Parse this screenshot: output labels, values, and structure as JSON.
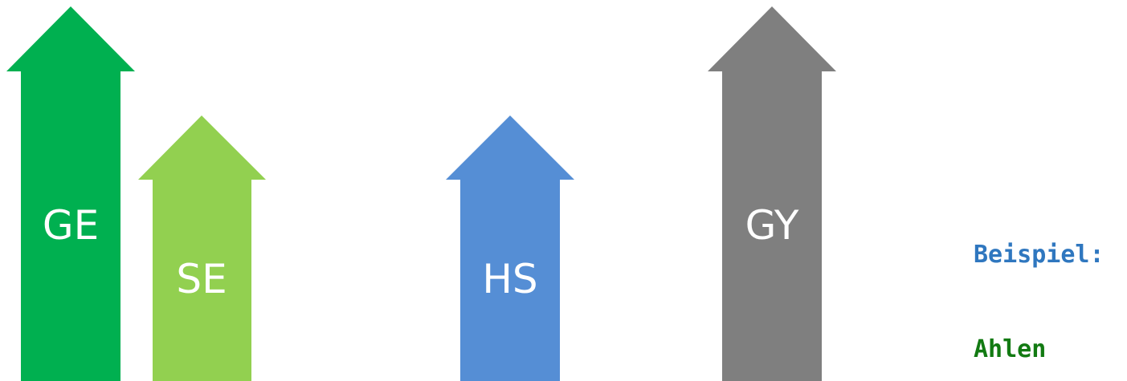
{
  "arrows": [
    {
      "id": "ge",
      "label": "GE",
      "color": "#00b050"
    },
    {
      "id": "se",
      "label": "SE",
      "color": "#92d050"
    },
    {
      "id": "hs",
      "label": "HS",
      "color": "#558ed5"
    },
    {
      "id": "gy",
      "label": "GY",
      "color": "#7f7f7f"
    }
  ],
  "side_text": {
    "example_label": "Beispiel:",
    "example_color": "#2f77bf",
    "city": "Ahlen",
    "city_color": "#127a12"
  }
}
